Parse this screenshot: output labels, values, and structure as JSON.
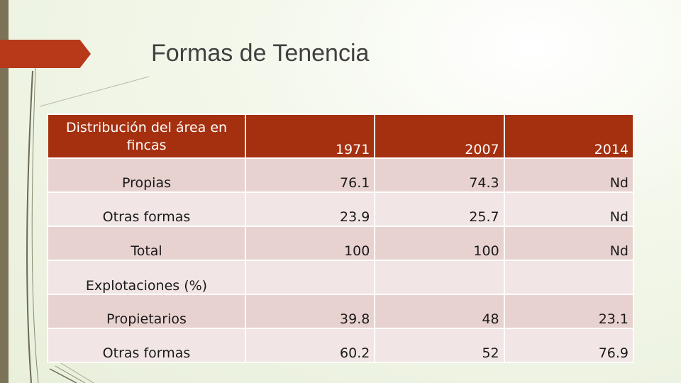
{
  "slide": {
    "title": "Formas de Tenencia"
  },
  "table": {
    "header": {
      "label": "Distribución del  área en fincas",
      "years": [
        "1971",
        "2007",
        "2014"
      ]
    },
    "rows": [
      {
        "label": "Propias",
        "values": [
          "76.1",
          "74.3",
          "Nd"
        ]
      },
      {
        "label": "Otras formas",
        "values": [
          "23.9",
          "25.7",
          "Nd"
        ]
      },
      {
        "label": "Total",
        "values": [
          "100",
          "100",
          "Nd"
        ]
      },
      {
        "label": "Explotaciones (%)",
        "values": [
          "",
          "",
          ""
        ]
      },
      {
        "label": "Propietarios",
        "values": [
          "39.8",
          "48",
          "23.1"
        ]
      },
      {
        "label": "Otras formas",
        "values": [
          "60.2",
          "52",
          "76.9"
        ]
      }
    ]
  },
  "colors": {
    "header_bg": "#a5300f",
    "row_dark": "#e8d2d0",
    "row_light": "#f1e6e5",
    "accent": "#b8391a",
    "left_bar": "#7b7257"
  }
}
